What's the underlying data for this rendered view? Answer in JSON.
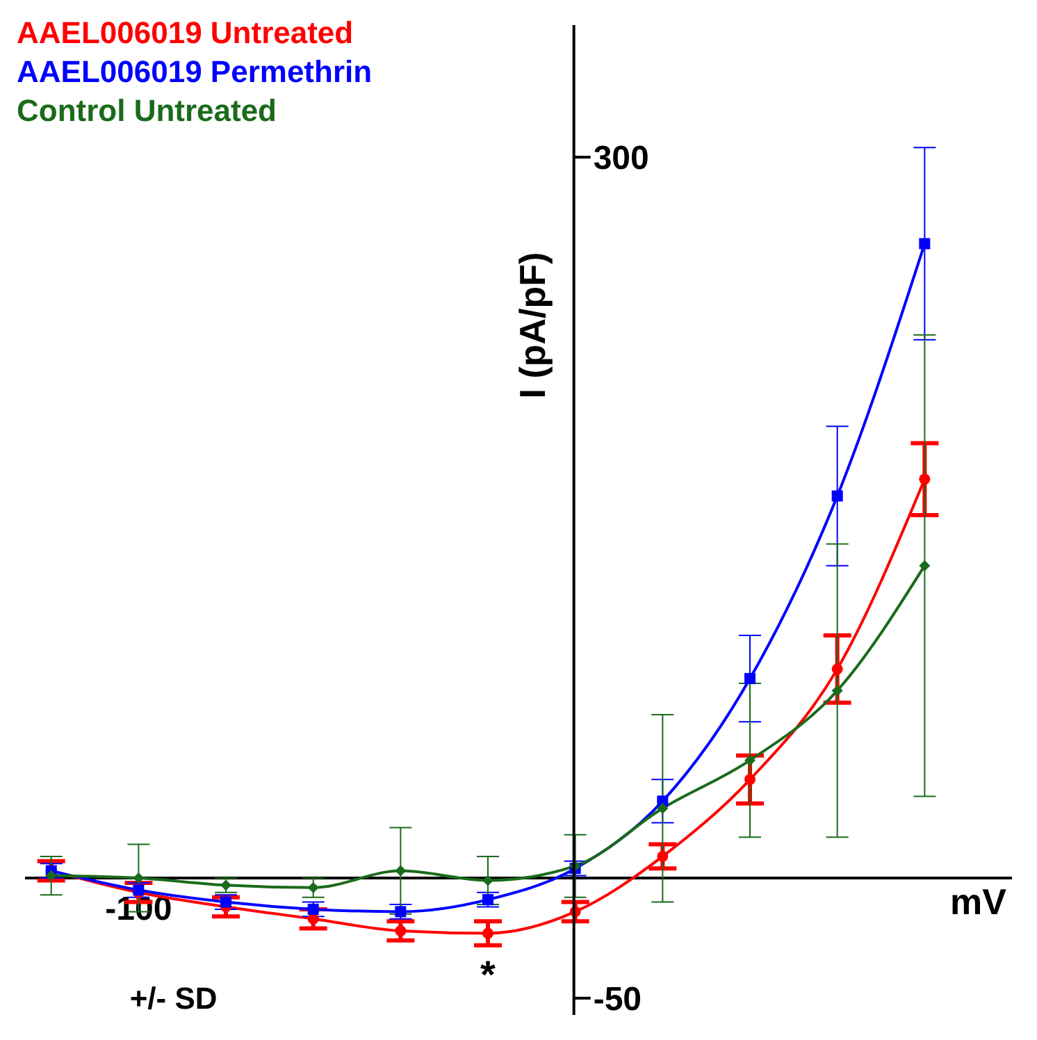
{
  "chart_data": {
    "type": "line",
    "xlabel": "mV",
    "ylabel": "I (pA/pF)",
    "categories": [
      null,
      "-100",
      null,
      null,
      null,
      null,
      null,
      null,
      null,
      null,
      null
    ],
    "series": [
      {
        "name": "AAEL006019 Untreated",
        "color": "#ff0000",
        "marker": "circle",
        "values": [
          3,
          -6,
          -12,
          -17,
          -22,
          -23,
          -14,
          9,
          41,
          87,
          166
        ],
        "errors": [
          4,
          4,
          4,
          4,
          4,
          5,
          4,
          5,
          10,
          14,
          15
        ]
      },
      {
        "name": "AAEL006019 Permethrin",
        "color": "#0000ff",
        "marker": "square",
        "values": [
          3,
          -5,
          -10,
          -13,
          -14,
          -9,
          4,
          32,
          83,
          159,
          264
        ],
        "errors": [
          3,
          3,
          3,
          3,
          3,
          3,
          3,
          9,
          18,
          29,
          40
        ]
      },
      {
        "name": "Control Untreated",
        "color": "#1a6b1a",
        "marker": "diamond",
        "values": [
          1,
          0,
          -3,
          -4,
          3,
          -1,
          5,
          29,
          49,
          78,
          130
        ],
        "errors": [
          8,
          14,
          3,
          4,
          18,
          10,
          13,
          39,
          32,
          61,
          96
        ]
      }
    ],
    "ylim": [
      -57,
      355
    ],
    "yticks": [
      -50,
      300
    ],
    "legend": "top left",
    "annotations": [
      "+/- SD",
      "*"
    ]
  }
}
